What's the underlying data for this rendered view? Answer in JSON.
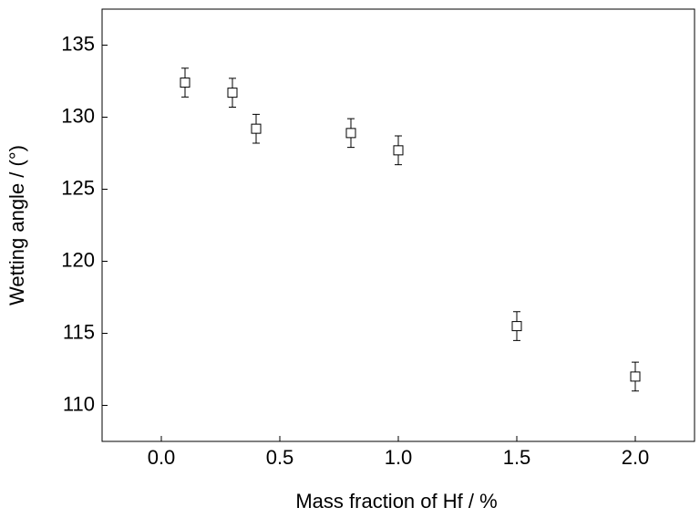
{
  "chart_data": {
    "type": "scatter",
    "x_label": "Mass fraction of Hf / %",
    "y_label": "Wetting angle / (°)",
    "x": [
      0.1,
      0.3,
      0.4,
      0.8,
      1.0,
      1.5,
      2.0
    ],
    "values": [
      132.4,
      131.7,
      129.2,
      128.9,
      127.7,
      115.5,
      112.0
    ],
    "errors": [
      1.0,
      1.0,
      1.0,
      1.0,
      1.0,
      1.0,
      1.0
    ],
    "color": "#000000",
    "xlim": [
      -0.25,
      2.25
    ],
    "ylim": [
      107.5,
      137.5
    ],
    "xticks": [
      {
        "value": 0,
        "label": "0.0"
      },
      0.5,
      {
        "value": 1,
        "label": "1.0"
      },
      1.5,
      {
        "value": 2,
        "label": "2.0"
      }
    ],
    "yticks": [
      110,
      115,
      120,
      125,
      130,
      135
    ],
    "grid": false
  }
}
